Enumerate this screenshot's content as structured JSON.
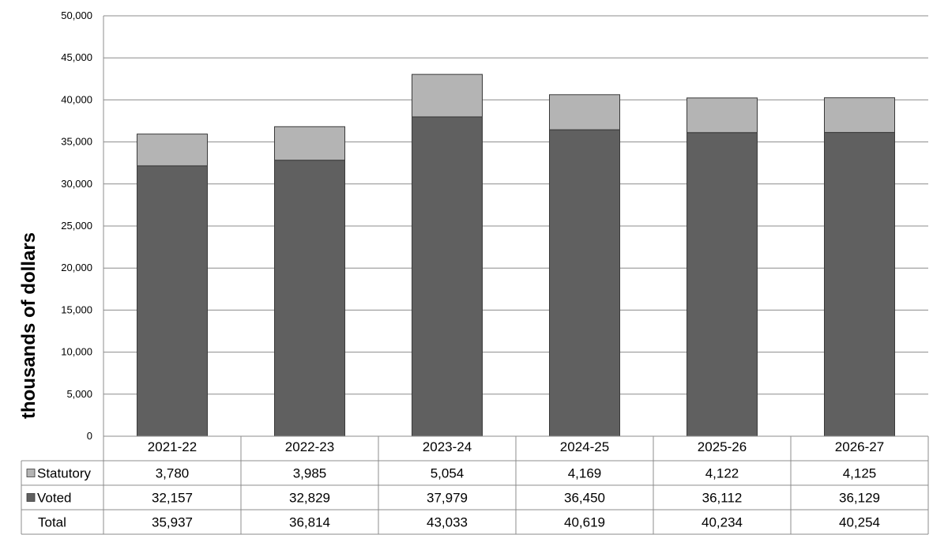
{
  "chart_data": {
    "type": "bar",
    "stacked": true,
    "title": "",
    "xlabel": "",
    "ylabel": "thousands of dollars",
    "ylim": [
      0,
      50000
    ],
    "yticks": [
      "0",
      "5,000",
      "10,000",
      "15,000",
      "20,000",
      "25,000",
      "30,000",
      "35,000",
      "40,000",
      "45,000",
      "50,000"
    ],
    "grid": true,
    "legend": "data-table-left",
    "categories": [
      "2021-22",
      "2022-23",
      "2023-24",
      "2024-25",
      "2025-26",
      "2026-27"
    ],
    "series": [
      {
        "name": "Statutory",
        "color": "#b4b4b4",
        "values": [
          3780,
          3985,
          5054,
          4169,
          4122,
          4125
        ],
        "labels": [
          "3,780",
          "3,985",
          "5,054",
          "4,169",
          "4,122",
          "4,125"
        ]
      },
      {
        "name": "Voted",
        "color": "#606060",
        "values": [
          32157,
          32829,
          37979,
          36450,
          36112,
          36129
        ],
        "labels": [
          "32,157",
          "32,829",
          "37,979",
          "36,450",
          "36,112",
          "36,129"
        ]
      }
    ],
    "total": {
      "name": "Total",
      "values": [
        35937,
        36814,
        43033,
        40619,
        40234,
        40254
      ],
      "labels": [
        "35,937",
        "36,814",
        "43,033",
        "40,619",
        "40,234",
        "40,254"
      ]
    }
  }
}
